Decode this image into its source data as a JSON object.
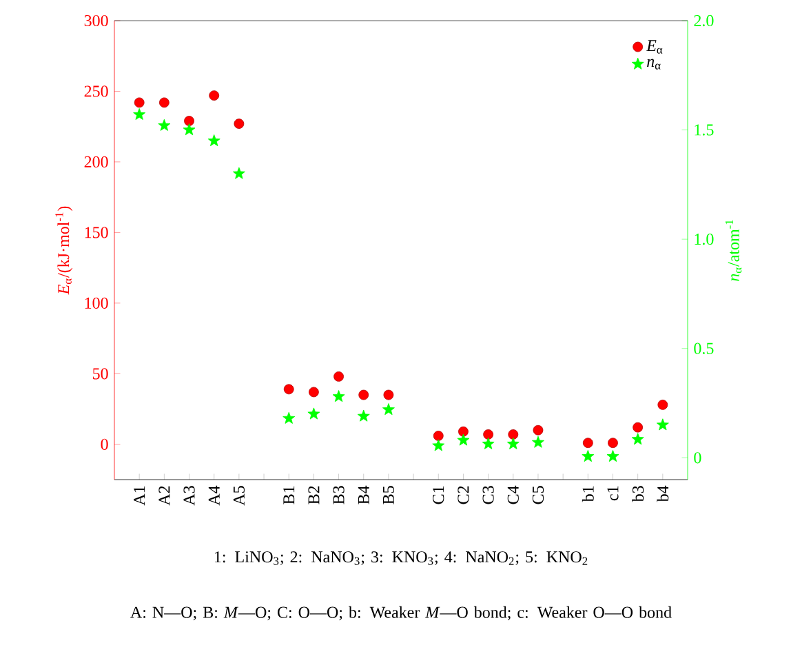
{
  "chart_data": {
    "type": "scatter",
    "categories": [
      "A1",
      "A2",
      "A3",
      "A4",
      "A5",
      null,
      "B1",
      "B2",
      "B3",
      "B4",
      "B5",
      null,
      "C1",
      "C2",
      "C3",
      "C4",
      "C5",
      null,
      "b1",
      "c1",
      "b3",
      "b4"
    ],
    "series": [
      {
        "name": "*E*$_{α}$",
        "color": "#ff0000",
        "marker": "circle",
        "values": [
          242,
          242,
          229,
          247,
          227,
          null,
          39,
          37,
          48,
          35,
          35,
          null,
          6,
          9,
          7,
          7,
          10,
          null,
          1,
          1,
          12,
          28
        ]
      },
      {
        "name": "*n*$_{α}$",
        "color": "#00ff00",
        "marker": "star",
        "axis": "y2",
        "values": [
          1.57,
          1.52,
          1.5,
          1.45,
          1.3,
          null,
          0.18,
          0.2,
          0.28,
          0.19,
          0.22,
          null,
          0.055,
          0.08,
          0.063,
          0.063,
          0.07,
          null,
          0.006,
          0.006,
          0.084,
          0.15
        ]
      }
    ],
    "ylabel": "*E*$_{α}$/(kJ·mol$^{-1}$)",
    "y2label": "*n*$_{α}$/atom$^{-1}$",
    "ylim": [
      -25,
      300
    ],
    "yticks": [
      0,
      50,
      100,
      150,
      200,
      250,
      300
    ],
    "y2lim": [
      -0.1,
      2.0
    ],
    "y2ticks": [
      0,
      0.5,
      {
        "value": 1,
        "label": "1.0"
      },
      1.5,
      {
        "value": 2,
        "label": "2.0"
      }
    ],
    "legend": "top right",
    "annotations": [
      "1: LiNO$_{3}$; 2: NaNO$_{3}$; 3: KNO$_{3}$; 4: NaNO$_{2}$; 5: KNO$_{2}$",
      "A: N—O; B: *M*—O; C: O—O; b: Weaker *M*—O bond; c: Weaker O—O bond"
    ]
  }
}
